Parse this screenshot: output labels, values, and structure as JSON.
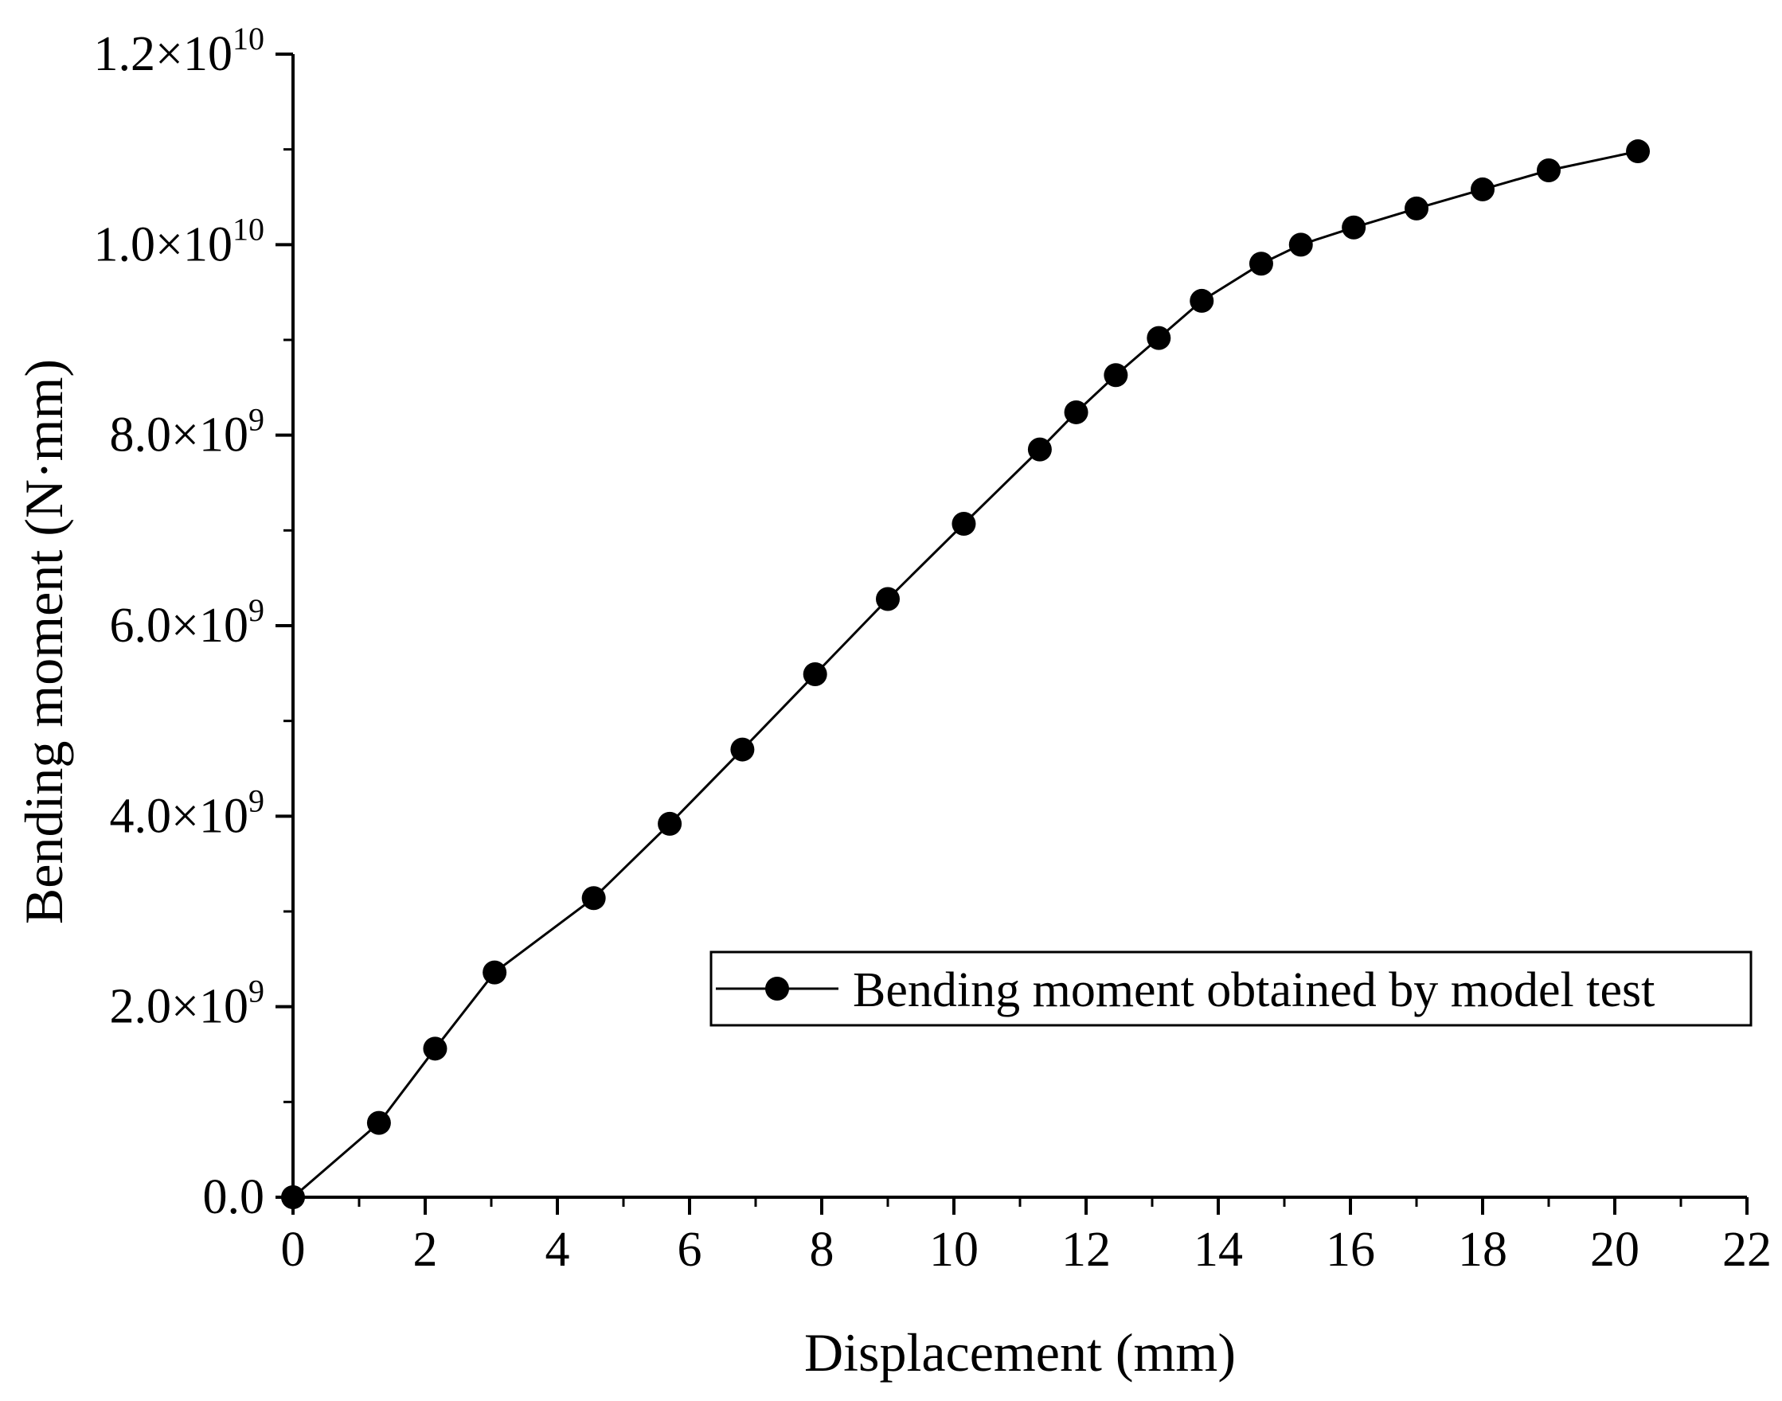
{
  "chart_data": {
    "type": "line",
    "xlabel": "Displacement (mm)",
    "ylabel": "Bending moment (N·mm)",
    "xlim": [
      0,
      22
    ],
    "ylim": [
      0,
      12000000000
    ],
    "x_ticks": [
      0,
      2,
      4,
      6,
      8,
      10,
      12,
      14,
      16,
      18,
      20,
      22
    ],
    "y_ticks": [
      {
        "value": 0,
        "mantissa": "0.0",
        "exp": ""
      },
      {
        "value": 2000000000,
        "mantissa": "2.0×10",
        "exp": "9"
      },
      {
        "value": 4000000000,
        "mantissa": "4.0×10",
        "exp": "9"
      },
      {
        "value": 6000000000,
        "mantissa": "6.0×10",
        "exp": "9"
      },
      {
        "value": 8000000000,
        "mantissa": "8.0×10",
        "exp": "9"
      },
      {
        "value": 10000000000,
        "mantissa": "1.0×10",
        "exp": "10"
      },
      {
        "value": 12000000000,
        "mantissa": "1.2×10",
        "exp": "10"
      }
    ],
    "grid": false,
    "legend_position": "center-right",
    "series": [
      {
        "name": "Bending moment obtained by model test",
        "color": "#000000",
        "marker": "filled-circle",
        "x": [
          0,
          1.3,
          2.15,
          3.05,
          4.55,
          5.7,
          6.8,
          7.9,
          9.0,
          10.15,
          11.3,
          11.85,
          12.45,
          13.1,
          13.75,
          14.65,
          15.25,
          16.05,
          17.0,
          18.0,
          19.0,
          20.35
        ],
        "y": [
          0,
          780000000,
          1560000000,
          2360000000,
          3140000000,
          3920000000,
          4700000000,
          5490000000,
          6280000000,
          7070000000,
          7850000000,
          8240000000,
          8630000000,
          9020000000,
          9410000000,
          9800000000,
          10000000000,
          10180000000,
          10380000000,
          10580000000,
          10780000000,
          10980000000
        ]
      }
    ]
  }
}
